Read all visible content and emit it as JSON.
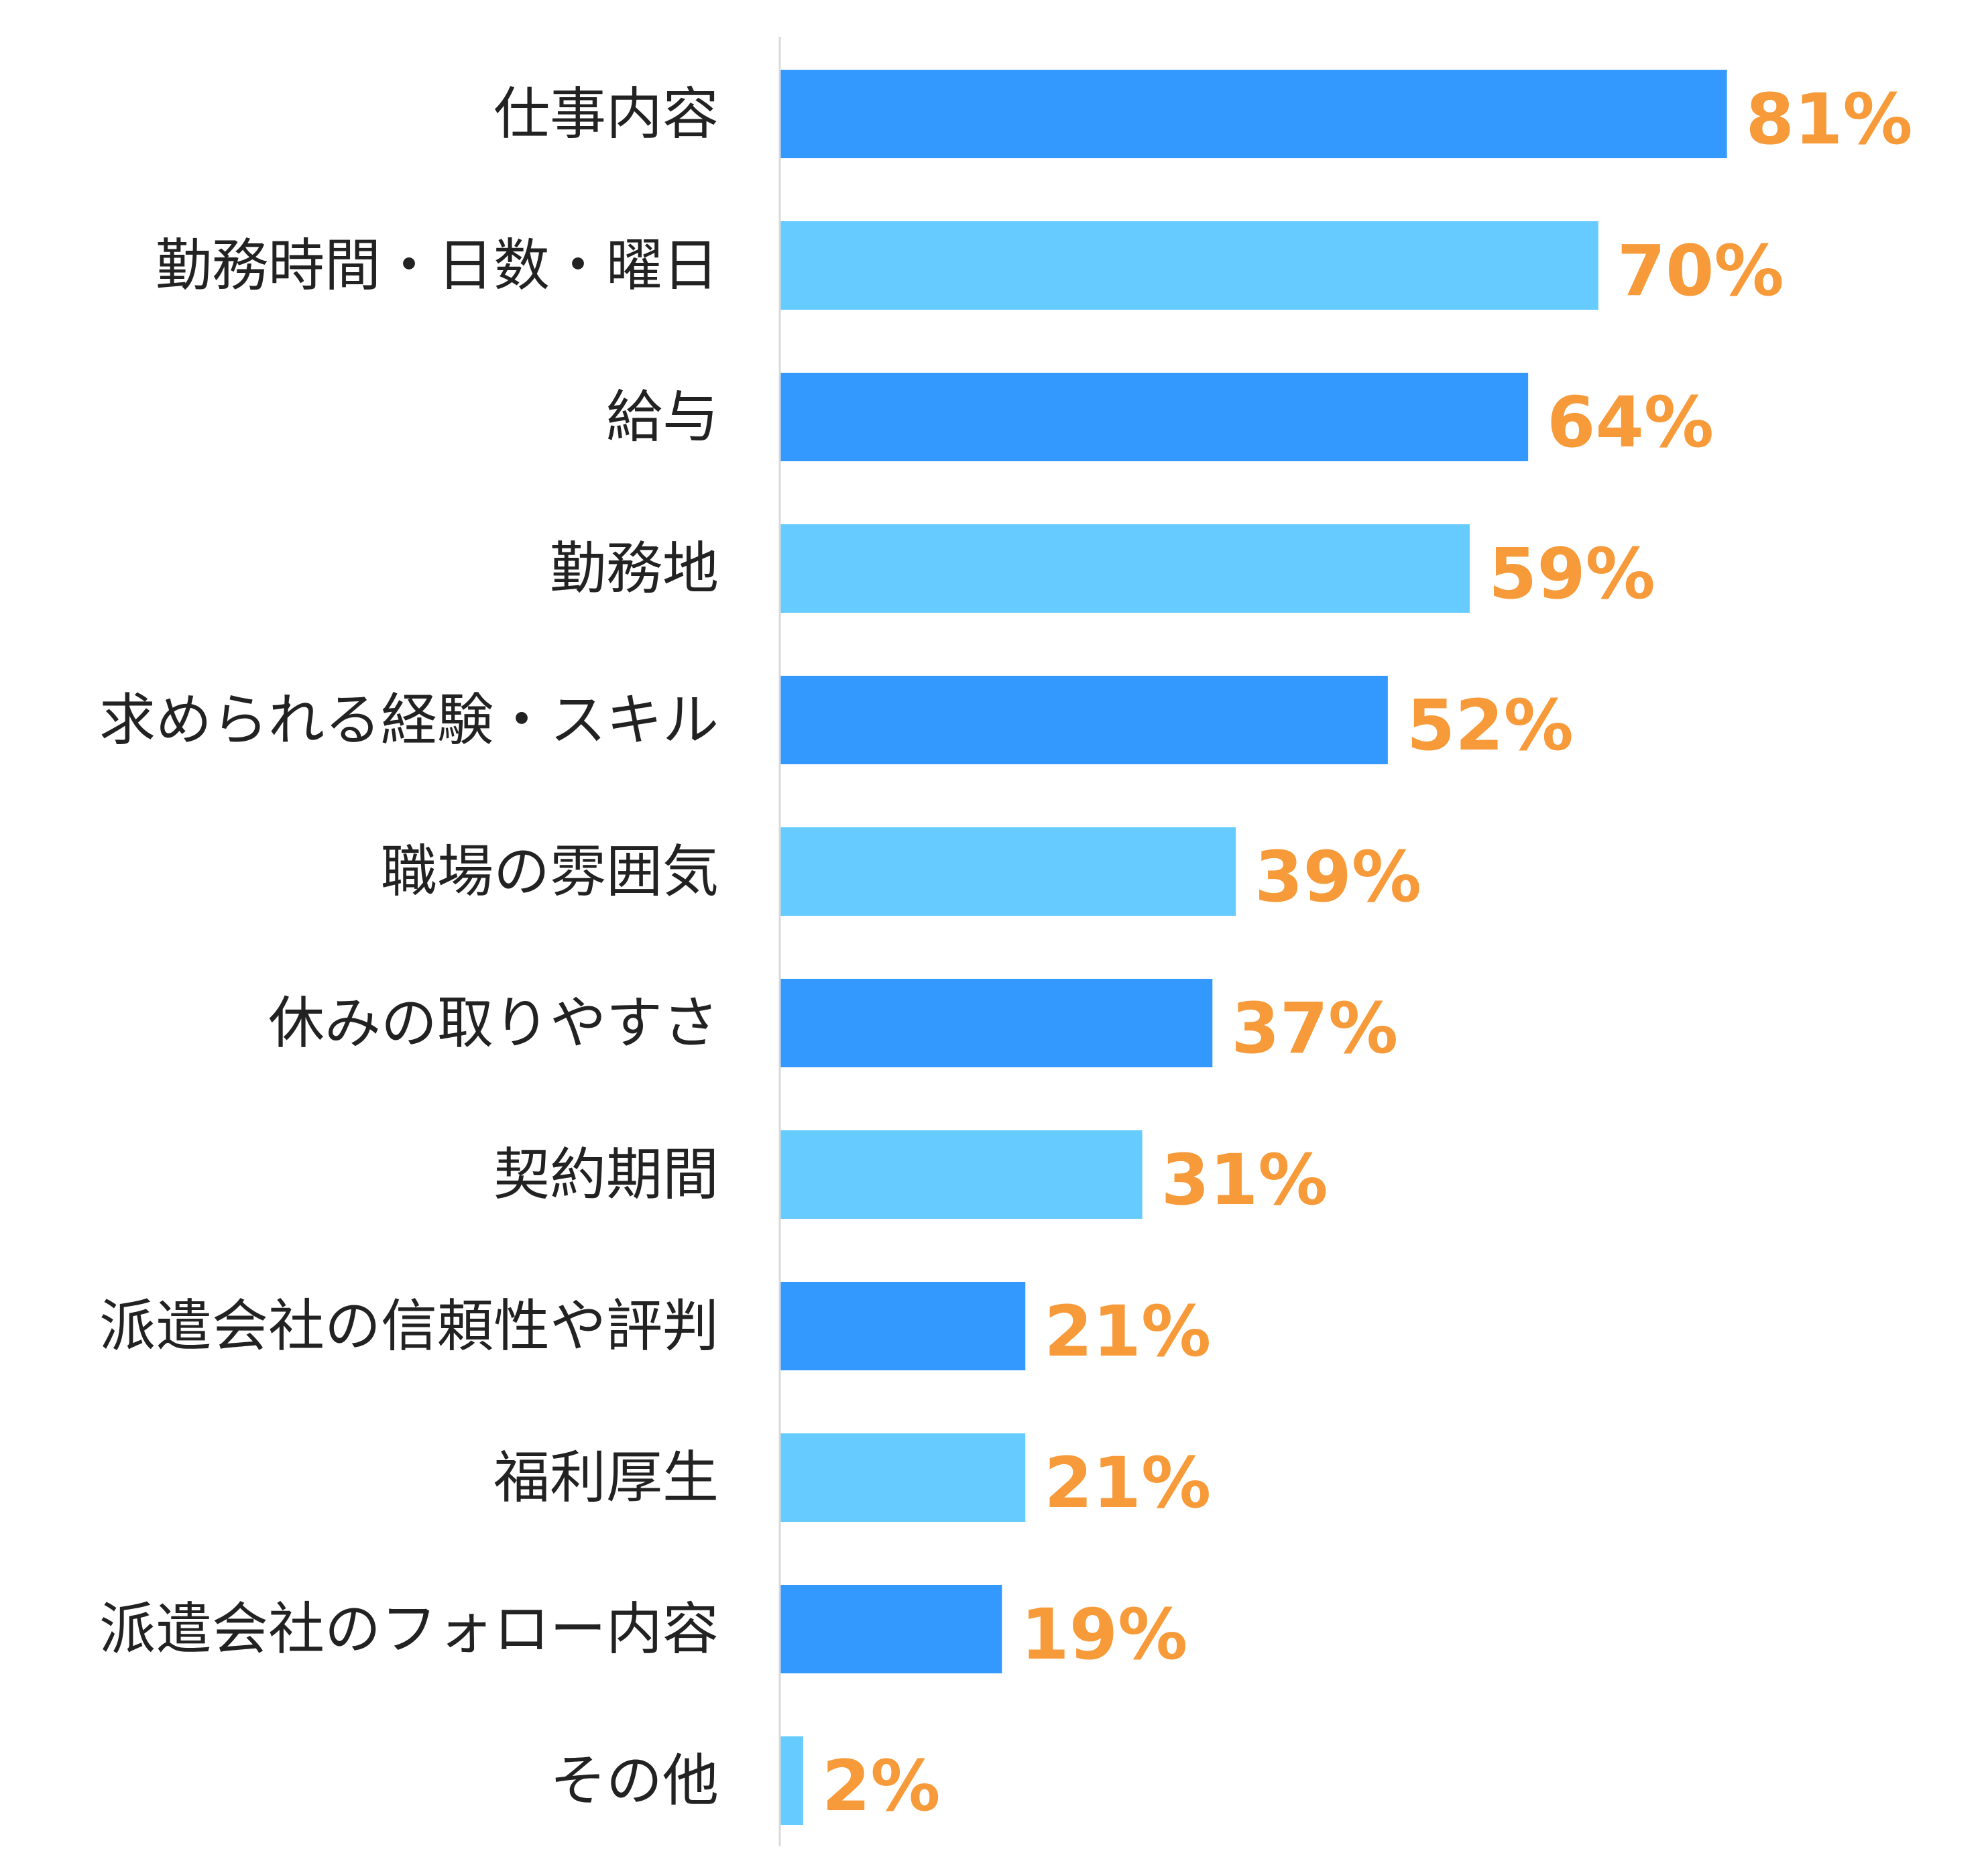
{
  "chart_data": {
    "type": "bar",
    "orientation": "horizontal",
    "categories": [
      "仕事内容",
      "勤務時間・日数・曜日",
      "給与",
      "勤務地",
      "求められる経験・スキル",
      "職場の雰囲気",
      "休みの取りやすさ",
      "契約期間",
      "派遣会社の信頼性や評判",
      "福利厚生",
      "派遣会社のフォロー内容",
      "その他"
    ],
    "values": [
      81,
      70,
      64,
      59,
      52,
      39,
      37,
      31,
      21,
      21,
      19,
      2
    ],
    "value_labels": [
      "81%",
      "70%",
      "64%",
      "59%",
      "52%",
      "39%",
      "37%",
      "31%",
      "21%",
      "21%",
      "19%",
      "2%"
    ],
    "unit": "%",
    "xlim": [
      0,
      100
    ],
    "grid": false,
    "legend": "none",
    "colors": {
      "bar_primary": "#3399FF",
      "bar_secondary": "#66CCFF",
      "value_label": "#F79A3A",
      "category_label": "#222222",
      "axis_line": "#D9D9D9"
    }
  }
}
